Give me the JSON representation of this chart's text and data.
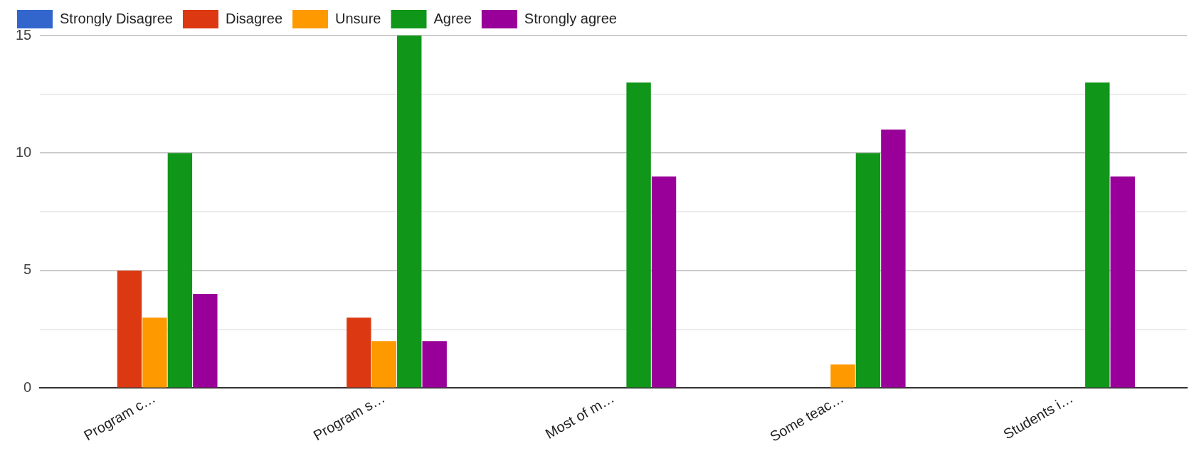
{
  "chart_data": {
    "type": "bar",
    "categories": [
      "Program c…",
      "Program s…",
      "Most of m…",
      "Some teac…",
      "Students i…"
    ],
    "series": [
      {
        "name": "Strongly Disagree",
        "color": "#3366cc",
        "values": [
          0,
          0,
          0,
          0,
          0
        ]
      },
      {
        "name": "Disagree",
        "color": "#dc3912",
        "values": [
          5,
          3,
          0,
          0,
          0
        ]
      },
      {
        "name": "Unsure",
        "color": "#ff9900",
        "values": [
          3,
          2,
          0,
          1,
          0
        ]
      },
      {
        "name": "Agree",
        "color": "#109618",
        "values": [
          10,
          15,
          13,
          10,
          13
        ]
      },
      {
        "name": "Strongly agree",
        "color": "#990099",
        "values": [
          4,
          2,
          9,
          11,
          9
        ]
      }
    ],
    "ylim": [
      0,
      15
    ],
    "yticks": [
      0,
      {
        "value": 2.5,
        "label": null
      },
      5,
      {
        "value": 7.5,
        "label": null
      },
      10,
      {
        "value": 12.5,
        "label": null
      },
      15
    ],
    "grid": "y",
    "legend": "top left"
  }
}
